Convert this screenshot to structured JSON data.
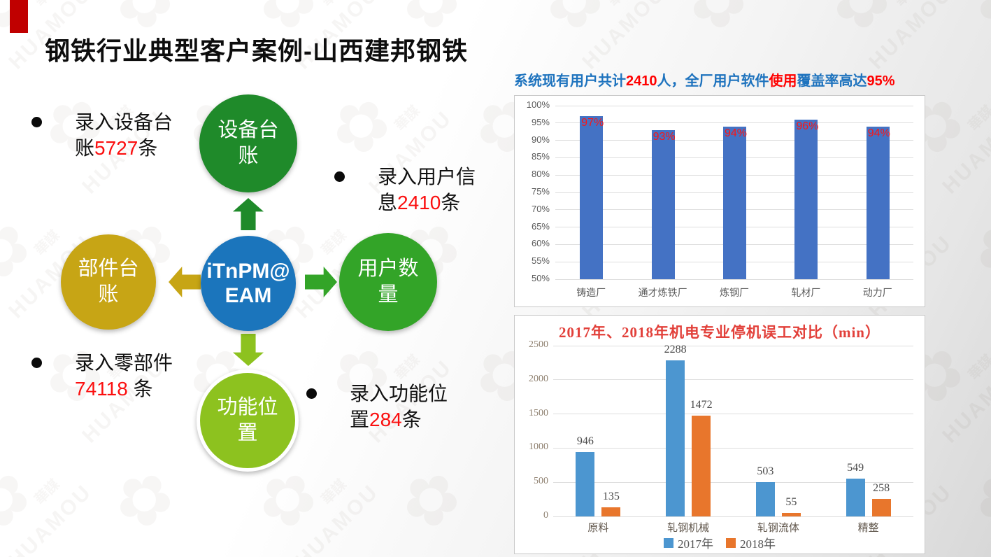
{
  "slide": {
    "title": "钢铁行业典型客户案例-山西建邦钢铁",
    "accent_color": "#c00000"
  },
  "watermark": {
    "cn": "華謀",
    "en": "HUAMOU",
    "flower": "✿"
  },
  "subtitle": {
    "s1": "系统现有用户共计",
    "s2": "2410",
    "s3": "人，全厂用户软件",
    "s4": "使用",
    "s5": "覆盖率高达",
    "s6": "95%",
    "blue": "#1e73be",
    "red": "#ff0000"
  },
  "diagram": {
    "center": {
      "line1": "iTnPM@",
      "line2": "EAM",
      "color": "#1b75bc"
    },
    "top": {
      "line1": "设备台",
      "line2": "账",
      "color": "#1f8a2a"
    },
    "right": {
      "line1": "用户数",
      "line2": "量",
      "color": "#33a428"
    },
    "bottom": {
      "line1": "功能位",
      "line2": "置",
      "color": "#8dc21f"
    },
    "left": {
      "line1": "部件台",
      "line2": "账",
      "color": "#c7a515"
    },
    "arrow_colors": {
      "up": "#1f8a2a",
      "right": "#33a428",
      "down": "#8dc21f",
      "left": "#c7a515"
    }
  },
  "bullets": [
    {
      "pre": "录入设备台账",
      "num": "5727",
      "post": "条"
    },
    {
      "pre": "录入用户信息",
      "num": "2410",
      "post": "条"
    },
    {
      "pre": "录入零部件",
      "num": "74118",
      "post": " 条"
    },
    {
      "pre": "录入功能位置",
      "num": "284",
      "post": "条"
    }
  ],
  "chart_data": [
    {
      "type": "bar",
      "title": "",
      "categories": [
        "铸造厂",
        "通才炼铁厂",
        "炼钢厂",
        "轧材厂",
        "动力厂"
      ],
      "values": [
        97,
        93,
        94,
        96,
        94
      ],
      "value_labels": [
        "97%",
        "93%",
        "94%",
        "96%",
        "94%"
      ],
      "ylim": [
        50,
        100
      ],
      "ytick_step": 5,
      "ytick_suffix": "%",
      "grid": true,
      "legend_position": "none",
      "bar_color": "#4472c4",
      "label_color": "#fb1515",
      "axis_text_color": "#595959",
      "grid_color": "#dedede"
    },
    {
      "type": "bar",
      "title": "2017年、2018年机电专业停机误工对比（min）",
      "title_color": "#e2403a",
      "categories": [
        "原料",
        "轧钢机械",
        "轧钢流体",
        "精整"
      ],
      "series": [
        {
          "name": "2017年",
          "color": "#4c96d0",
          "values": [
            946,
            2288,
            503,
            549
          ]
        },
        {
          "name": "2018年",
          "color": "#e8762c",
          "values": [
            135,
            1472,
            55,
            258
          ]
        }
      ],
      "ylim": [
        0,
        2500
      ],
      "ytick_step": 500,
      "grid": true,
      "legend_position": "bottom",
      "value_label_color": "#4a4a4a",
      "axis_text_color": "#8f8170",
      "category_text_color": "#60564b",
      "grid_color": "#dedede"
    }
  ]
}
